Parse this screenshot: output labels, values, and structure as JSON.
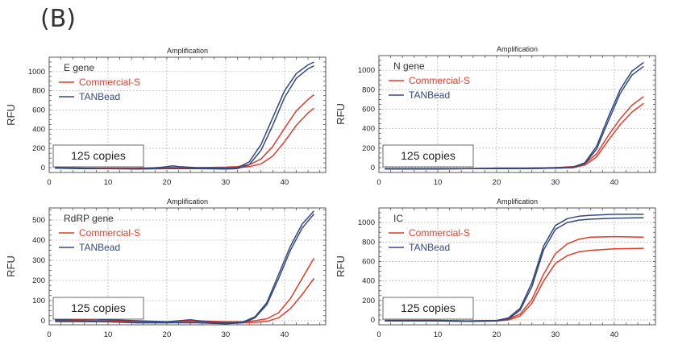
{
  "figure_label": "(B)",
  "colors": {
    "commercial": "#e23b2a",
    "tanbead": "#33497e",
    "grid": "#b9b9b9",
    "frame": "#555555"
  },
  "chart_data": [
    {
      "type": "line",
      "title": "Amplification",
      "ylabel": "RFU",
      "xlabel": "",
      "legend_title": "E gene",
      "annotation": "125 copies",
      "xlim": [
        0,
        47
      ],
      "ylim": [
        -50,
        1150
      ],
      "xticks": [
        0,
        10,
        20,
        30,
        40
      ],
      "yticks": [
        0,
        200,
        400,
        600,
        800,
        1000
      ],
      "grid": true,
      "legend": "top-left",
      "series": [
        {
          "name": "Commercial-S",
          "color": "#e23b2a",
          "x": [
            1,
            5,
            10,
            15,
            18,
            20,
            22,
            25,
            30,
            32,
            34,
            36,
            38,
            40,
            42,
            44,
            45
          ],
          "y": [
            0,
            -5,
            -5,
            -5,
            0,
            5,
            0,
            0,
            5,
            10,
            30,
            90,
            220,
            410,
            590,
            710,
            760
          ]
        },
        {
          "name": "Commercial-S",
          "color": "#e23b2a",
          "x": [
            1,
            5,
            10,
            15,
            20,
            25,
            30,
            32,
            34,
            36,
            38,
            40,
            42,
            44,
            45
          ],
          "y": [
            -5,
            -5,
            -10,
            -10,
            -5,
            -5,
            -5,
            0,
            10,
            40,
            120,
            270,
            440,
            570,
            620
          ]
        },
        {
          "name": "TANBead",
          "color": "#33497e",
          "x": [
            1,
            5,
            10,
            15,
            18,
            20,
            21,
            22,
            25,
            30,
            32,
            34,
            36,
            38,
            40,
            42,
            44,
            45
          ],
          "y": [
            0,
            -5,
            -10,
            -10,
            -5,
            10,
            20,
            10,
            0,
            -5,
            0,
            60,
            240,
            520,
            800,
            980,
            1070,
            1100
          ]
        },
        {
          "name": "TANBead",
          "color": "#33497e",
          "x": [
            1,
            5,
            10,
            15,
            20,
            25,
            30,
            32,
            34,
            36,
            38,
            40,
            42,
            44,
            45
          ],
          "y": [
            -5,
            -10,
            -10,
            -15,
            -10,
            -10,
            -15,
            -10,
            30,
            180,
            440,
            730,
            930,
            1030,
            1060
          ]
        }
      ]
    },
    {
      "type": "line",
      "title": "Amplification",
      "ylabel": "RFU",
      "xlabel": "",
      "legend_title": "N gene",
      "annotation": "125 copies",
      "xlim": [
        0,
        47
      ],
      "ylim": [
        -50,
        1150
      ],
      "xticks": [
        0,
        10,
        20,
        30,
        40
      ],
      "yticks": [
        0,
        200,
        400,
        600,
        800,
        1000
      ],
      "grid": true,
      "legend": "top-left",
      "series": [
        {
          "name": "Commercial-S",
          "color": "#e23b2a",
          "x": [
            1,
            5,
            10,
            15,
            20,
            25,
            30,
            33,
            35,
            37,
            39,
            41,
            43,
            45
          ],
          "y": [
            -10,
            -10,
            -10,
            -10,
            -5,
            -5,
            0,
            10,
            40,
            140,
            330,
            500,
            640,
            730
          ]
        },
        {
          "name": "Commercial-S",
          "color": "#e23b2a",
          "x": [
            1,
            5,
            10,
            15,
            20,
            25,
            30,
            33,
            35,
            37,
            39,
            41,
            43,
            45
          ],
          "y": [
            -15,
            -15,
            -15,
            -10,
            -10,
            -10,
            -5,
            0,
            25,
            110,
            280,
            440,
            570,
            660
          ]
        },
        {
          "name": "TANBead",
          "color": "#33497e",
          "x": [
            1,
            5,
            10,
            15,
            20,
            25,
            30,
            33,
            35,
            37,
            39,
            41,
            43,
            45
          ],
          "y": [
            -10,
            -10,
            -10,
            -10,
            -5,
            -5,
            0,
            5,
            50,
            220,
            520,
            800,
            990,
            1080
          ]
        },
        {
          "name": "TANBead",
          "color": "#33497e",
          "x": [
            1,
            5,
            10,
            15,
            20,
            25,
            30,
            33,
            35,
            37,
            39,
            41,
            43,
            45
          ],
          "y": [
            -15,
            -15,
            -15,
            -10,
            -10,
            -10,
            -5,
            0,
            40,
            190,
            480,
            760,
            950,
            1040
          ]
        }
      ]
    },
    {
      "type": "line",
      "title": "Amplification",
      "ylabel": "RFU",
      "xlabel": "",
      "legend_title": "RdRP gene",
      "annotation": "125 copies",
      "xlim": [
        0,
        47
      ],
      "ylim": [
        -20,
        560
      ],
      "xticks": [
        0,
        10,
        20,
        30,
        40
      ],
      "yticks": [
        0,
        100,
        200,
        300,
        400,
        500
      ],
      "grid": true,
      "legend": "top-left",
      "series": [
        {
          "name": "Commercial-S",
          "color": "#e23b2a",
          "x": [
            1,
            5,
            10,
            15,
            20,
            25,
            30,
            33,
            35,
            37,
            39,
            41,
            43,
            45
          ],
          "y": [
            0,
            5,
            0,
            -5,
            -5,
            0,
            -5,
            -5,
            0,
            10,
            40,
            110,
            210,
            310
          ]
        },
        {
          "name": "Commercial-S",
          "color": "#e23b2a",
          "x": [
            1,
            5,
            10,
            15,
            20,
            25,
            30,
            33,
            35,
            37,
            39,
            41,
            43,
            45
          ],
          "y": [
            -5,
            -5,
            -5,
            -10,
            -10,
            -5,
            -10,
            -10,
            -8,
            -3,
            15,
            60,
            130,
            210
          ]
        },
        {
          "name": "TANBead",
          "color": "#33497e",
          "x": [
            1,
            5,
            7,
            10,
            15,
            20,
            24,
            27,
            30,
            33,
            35,
            37,
            39,
            41,
            43,
            45
          ],
          "y": [
            5,
            10,
            10,
            5,
            0,
            -5,
            5,
            -5,
            -10,
            -5,
            20,
            90,
            230,
            370,
            480,
            545
          ]
        },
        {
          "name": "TANBead",
          "color": "#33497e",
          "x": [
            1,
            5,
            10,
            15,
            20,
            25,
            30,
            33,
            35,
            37,
            39,
            41,
            43,
            45
          ],
          "y": [
            0,
            0,
            -5,
            -10,
            -10,
            -10,
            -15,
            -10,
            15,
            80,
            210,
            350,
            460,
            530
          ]
        }
      ]
    },
    {
      "type": "line",
      "title": "Amplification",
      "ylabel": "RFU",
      "xlabel": "",
      "legend_title": "IC",
      "annotation": "125 copies",
      "xlim": [
        0,
        47
      ],
      "ylim": [
        -50,
        1150
      ],
      "xticks": [
        0,
        10,
        20,
        30,
        40
      ],
      "yticks": [
        0,
        200,
        400,
        600,
        800,
        1000
      ],
      "grid": true,
      "legend": "top-left",
      "series": [
        {
          "name": "Commercial-S",
          "color": "#e23b2a",
          "x": [
            1,
            5,
            10,
            15,
            20,
            22,
            24,
            26,
            28,
            30,
            32,
            34,
            36,
            40,
            45
          ],
          "y": [
            -5,
            -5,
            -5,
            -10,
            -5,
            10,
            60,
            210,
            470,
            680,
            780,
            830,
            850,
            855,
            850
          ]
        },
        {
          "name": "Commercial-S",
          "color": "#e23b2a",
          "x": [
            1,
            5,
            10,
            15,
            20,
            22,
            24,
            26,
            28,
            30,
            32,
            34,
            36,
            40,
            45
          ],
          "y": [
            -10,
            -10,
            -10,
            -15,
            -10,
            0,
            40,
            170,
            400,
            580,
            660,
            700,
            715,
            730,
            735
          ]
        },
        {
          "name": "TANBead",
          "color": "#33497e",
          "x": [
            1,
            5,
            10,
            15,
            20,
            22,
            24,
            26,
            28,
            30,
            32,
            34,
            36,
            40,
            45
          ],
          "y": [
            -5,
            -5,
            -5,
            -10,
            -5,
            20,
            120,
            380,
            760,
            970,
            1040,
            1065,
            1075,
            1085,
            1085
          ]
        },
        {
          "name": "TANBead",
          "color": "#33497e",
          "x": [
            1,
            5,
            10,
            15,
            20,
            22,
            24,
            26,
            28,
            30,
            32,
            34,
            36,
            40,
            45
          ],
          "y": [
            -10,
            -10,
            -10,
            -15,
            -10,
            10,
            100,
            340,
            720,
            930,
            1000,
            1025,
            1035,
            1045,
            1050
          ]
        }
      ]
    }
  ]
}
